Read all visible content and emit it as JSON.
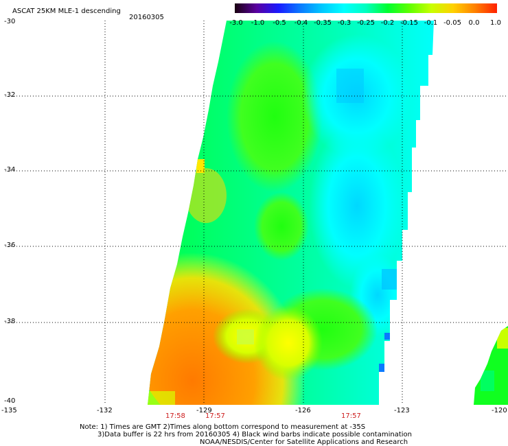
{
  "header": {
    "title": "ASCAT 25KM MLE-1 descending",
    "date": "20160305"
  },
  "colorbar": {
    "labels": [
      "-3.0",
      "-1.0",
      "-0.5",
      "-0.4",
      "-0.35",
      "-0.3",
      "-0.25",
      "-0.2",
      "-0.15",
      "-0.1",
      "-0.05",
      "0.0",
      "1.0"
    ],
    "colors": [
      "#1a0010",
      "#5a00a0",
      "#1a1aff",
      "#0a7aff",
      "#00c8ff",
      "#00ffff",
      "#00ffc0",
      "#00ff30",
      "#60ff00",
      "#c8ff00",
      "#ffd000",
      "#ff8000",
      "#ff2000"
    ]
  },
  "axes": {
    "lat_labels": [
      "-30",
      "-32",
      "-34",
      "-36",
      "-38",
      "-40"
    ],
    "lon_labels": [
      "-135",
      "-132",
      "-129",
      "-126",
      "-123",
      "-120"
    ]
  },
  "times": [
    "17:58",
    "17:57",
    "17:57"
  ],
  "notes": {
    "line1": "Note: 1) Times are GMT 2)Times along bottom correspond to measurement at -35S",
    "line2": "3)Data buffer is 22 hrs from 20160305 4) Black wind barbs indicate possible contamination",
    "line3": "NOAA/NESDIS/Center for Satellite Applications and Research"
  }
}
